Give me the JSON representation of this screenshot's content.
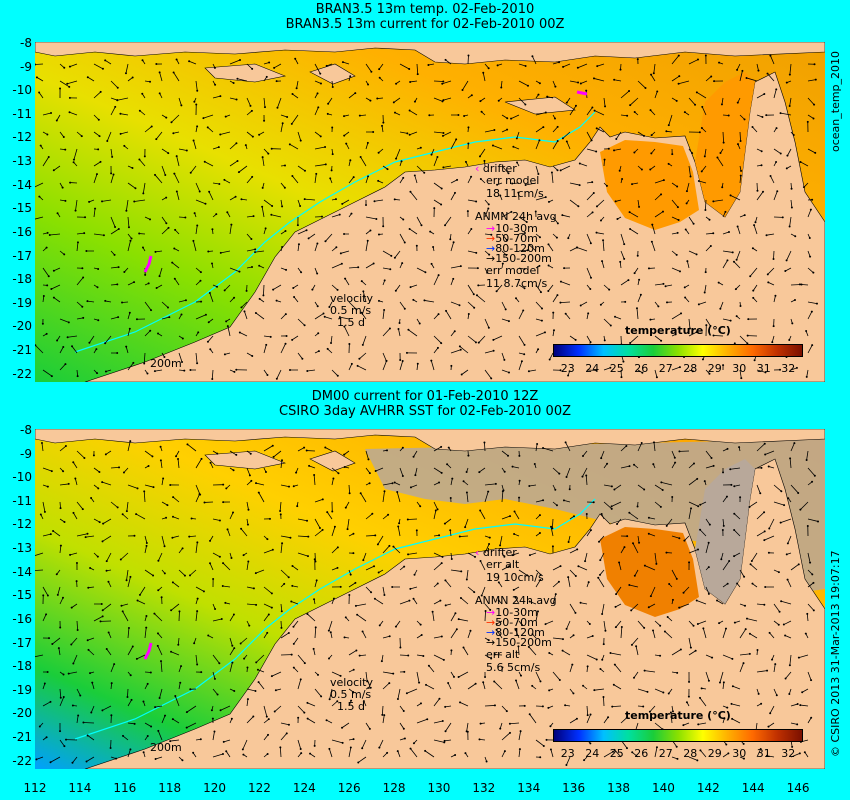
{
  "top": {
    "title_line1": "BRAN3.5 13m temp. 02-Feb-2010",
    "title_line2": "BRAN3.5 13m current for 02-Feb-2010 00Z",
    "drifter_label": "drifter",
    "err_label": "err model",
    "err_value": "18 11cm/s",
    "anmn_title": "ANMN 24h avg",
    "anmn_items": [
      "10-30m",
      "50-70m",
      "80-120m",
      "150-200m"
    ],
    "err2_label": "err model",
    "err2_value": "11 8.7cm/s",
    "velocity_label": "velocity",
    "velocity_value": "0.5 m/s",
    "velocity_time": "1.5 d",
    "scale_label": "200m",
    "colorbar_title": "temperature (°C)",
    "side_note": "ocean_temp_2010"
  },
  "bottom": {
    "title_line1": "DM00 current for 01-Feb-2010 12Z",
    "title_line2": "CSIRO 3day AVHRR SST for 02-Feb-2010 00Z",
    "drifter_label": "drifter",
    "err_label": "err alt",
    "err_value": "19 10cm/s",
    "anmn_title": "ANMN 24h avg",
    "anmn_items": [
      "10-30m",
      "50-70m",
      "80-120m",
      "150-200m"
    ],
    "err2_label": "err alt",
    "err2_value": "5.6 5cm/s",
    "velocity_label": "velocity",
    "velocity_value": "0.5 m/s",
    "velocity_time": "1.5 d",
    "scale_label": "200m",
    "colorbar_title": "temperature (°C)",
    "side_note": "© CSIRO 2013  31-Mar-2013 19:07:17"
  },
  "axes": {
    "lat_ticks": [
      "-8",
      "-9",
      "-10",
      "-11",
      "-12",
      "-13",
      "-14",
      "-15",
      "-16",
      "-17",
      "-18",
      "-19",
      "-20",
      "-21",
      "-22"
    ],
    "lon_ticks": [
      "112",
      "114",
      "116",
      "118",
      "120",
      "122",
      "124",
      "126",
      "128",
      "130",
      "132",
      "134",
      "136",
      "138",
      "140",
      "142",
      "144",
      "146"
    ],
    "colorbar_ticks": [
      "23",
      "24",
      "25",
      "26",
      "27",
      "28",
      "29",
      "30",
      "31",
      "32"
    ]
  },
  "colors": {
    "background": "#00ffff",
    "land": "#f8c89a",
    "land_nodata": "#b8a89a",
    "drifter": "#ff00ff",
    "anmn_colors": [
      "#ff00ff",
      "#ff3000",
      "#0030ff",
      "#000000"
    ]
  }
}
